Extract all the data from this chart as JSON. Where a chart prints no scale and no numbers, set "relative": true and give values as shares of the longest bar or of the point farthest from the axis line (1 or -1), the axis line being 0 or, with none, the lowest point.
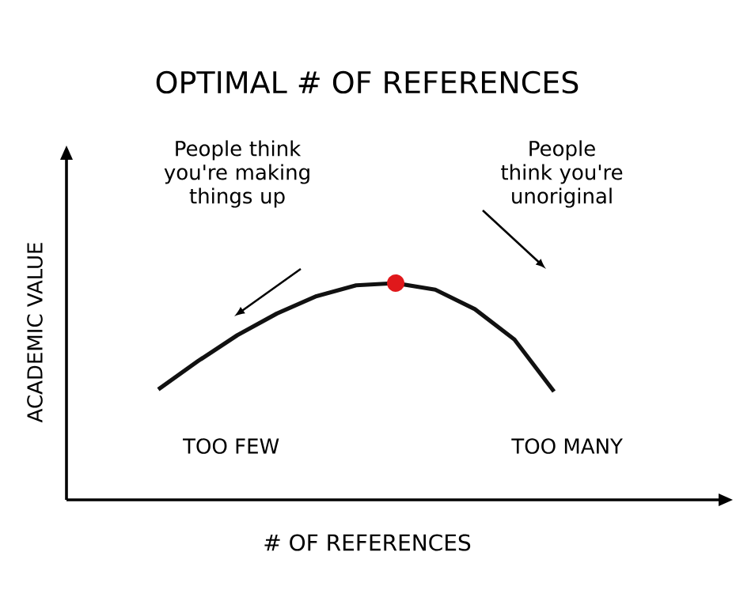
{
  "chart_data": {
    "type": "line",
    "title": "OPTIMAL # OF REFERENCES",
    "xlabel": "# OF REFERENCES",
    "ylabel": "ACADEMIC VALUE",
    "relative": true,
    "categories": [
      null,
      null,
      null,
      null,
      null,
      null,
      null,
      null,
      null,
      null,
      null
    ],
    "series": [
      {
        "color": "#111111",
        "values": [
          0.51,
          0.64,
          0.76,
          0.86,
          0.94,
          0.99,
          1,
          0.97,
          0.88,
          0.74,
          0.5
        ]
      }
    ],
    "annotations": [
      "People think you're making things up",
      "People think you're unoriginal",
      "TOO FEW",
      "TOO MANY"
    ]
  }
}
